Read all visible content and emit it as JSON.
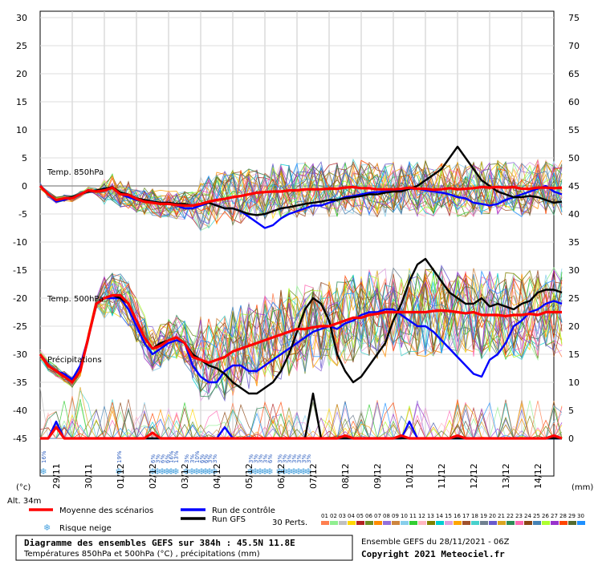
{
  "chart_data": {
    "type": "line",
    "left_axis": {
      "ticks": [
        30,
        25,
        20,
        15,
        10,
        5,
        0,
        -5,
        -10,
        -15,
        -20,
        -25,
        -30,
        -35,
        -40,
        -45
      ],
      "unit": "(°c)",
      "ylim": [
        -45,
        30
      ]
    },
    "right_axis": {
      "ticks": [
        75,
        70,
        65,
        60,
        55,
        50,
        45,
        40,
        35,
        30,
        25,
        20,
        15,
        10,
        5,
        0
      ],
      "unit": "(mm)",
      "ylim": [
        0,
        75
      ]
    },
    "x_labels": [
      "29/11",
      "30/11",
      "01/12",
      "02/12",
      "03/12",
      "04/12",
      "05/12",
      "06/12",
      "07/12",
      "08/12",
      "09/12",
      "10/12",
      "11/12",
      "12/12",
      "13/12",
      "14/12"
    ],
    "panel_labels": {
      "t850": "Temp. 850hPa",
      "t500": "Temp. 500hPa",
      "precip": "Précipitations"
    },
    "altitude": "Alt. 34m",
    "snow_risk": [
      {
        "day": 0.2,
        "pct": "16%"
      },
      {
        "day": 4.9,
        "pct": "19%"
      },
      {
        "day": 7.0,
        "pct": "6%"
      },
      {
        "day": 7.3,
        "pct": "3%"
      },
      {
        "day": 7.6,
        "pct": "6%"
      },
      {
        "day": 7.9,
        "pct": "6%"
      },
      {
        "day": 8.15,
        "pct": "16%"
      },
      {
        "day": 8.45,
        "pct": "13%"
      },
      {
        "day": 9.1,
        "pct": "3%"
      },
      {
        "day": 9.45,
        "pct": "3%"
      },
      {
        "day": 9.75,
        "pct": "10%"
      },
      {
        "day": 10.05,
        "pct": "6%"
      },
      {
        "day": 10.3,
        "pct": "6%"
      },
      {
        "day": 10.55,
        "pct": "3%"
      },
      {
        "day": 10.85,
        "pct": "3%"
      },
      {
        "day": 13.1,
        "pct": "3%"
      },
      {
        "day": 13.4,
        "pct": "3%"
      },
      {
        "day": 13.7,
        "pct": "3%"
      },
      {
        "day": 14.0,
        "pct": "3%"
      },
      {
        "day": 14.3,
        "pct": "6%"
      },
      {
        "day": 14.9,
        "pct": "3%"
      },
      {
        "day": 15.2,
        "pct": "3%"
      },
      {
        "day": 15.5,
        "pct": "3%"
      },
      {
        "day": 15.8,
        "pct": "3%"
      },
      {
        "day": 16.1,
        "pct": "3%"
      },
      {
        "day": 16.4,
        "pct": "3%"
      },
      {
        "day": 16.7,
        "pct": "3%"
      }
    ],
    "series": [
      {
        "name": "Moyenne des scénarios",
        "color": "#ff0000",
        "panel": "t850",
        "values": [
          0,
          -1.5,
          -2.5,
          -2.2,
          -2.2,
          -1.5,
          -0.8,
          -1,
          -0.8,
          -0.3,
          -1.5,
          -1.6,
          -2.3,
          -2.8,
          -3,
          -3.2,
          -3.2,
          -3.4,
          -3.5,
          -3.5,
          -3.2,
          -2.8,
          -2.5,
          -2.3,
          -2,
          -1.8,
          -1.5,
          -1.2,
          -1.1,
          -1,
          -1,
          -0.8,
          -0.8,
          -0.6,
          -0.6,
          -0.6,
          -0.5,
          -0.5,
          -0.3,
          -0.2,
          -0.4,
          -0.4,
          -0.6,
          -0.6,
          -0.6,
          -0.5,
          -0.3,
          -0.5,
          -0.5,
          -0.7,
          -0.6,
          -0.4,
          -0.6,
          -0.5,
          -0.4,
          -0.2,
          -0.3,
          -0.2,
          -0.3,
          -0.2,
          -0.5,
          -0.5,
          -0.3,
          -0.3,
          -0.4,
          -0.3
        ]
      },
      {
        "name": "Moyenne des scénarios",
        "color": "#ff0000",
        "panel": "t500",
        "values": [
          -30,
          -32,
          -33,
          -34,
          -35,
          -33,
          -27,
          -21,
          -20,
          -19.5,
          -19.5,
          -21,
          -24,
          -27,
          -29,
          -28.5,
          -27.5,
          -27,
          -28,
          -30.5,
          -31,
          -31.5,
          -31,
          -30.5,
          -29.5,
          -29,
          -28.5,
          -28,
          -27.5,
          -27,
          -26.5,
          -26,
          -25.5,
          -25.5,
          -25.2,
          -25,
          -25,
          -24.5,
          -24,
          -23.5,
          -23.5,
          -23,
          -22.8,
          -22.5,
          -22.5,
          -22.5,
          -22.5,
          -22.5,
          -22.5,
          -22.3,
          -22.2,
          -22.3,
          -22.5,
          -22.7,
          -22.5,
          -23,
          -23,
          -23,
          -23.2,
          -23,
          -23,
          -22.8,
          -23,
          -22.5,
          -22.5,
          -22.5
        ]
      },
      {
        "name": "Moyenne des scénarios",
        "color": "#ff0000",
        "panel": "precip",
        "values": [
          0,
          0,
          2,
          0,
          0,
          0,
          0,
          0,
          0,
          0,
          0,
          0,
          0,
          0,
          1,
          0,
          0,
          0,
          0,
          0,
          0,
          0,
          0,
          0,
          0,
          0,
          0,
          0,
          0,
          0,
          0,
          0,
          0,
          0,
          0,
          0,
          0,
          0,
          0.5,
          0,
          0,
          0,
          0,
          0,
          0,
          0.5,
          0,
          0,
          0,
          0,
          0,
          0,
          0.5,
          0,
          0,
          0,
          0,
          0,
          0,
          0,
          0,
          0,
          0,
          0,
          0.5,
          0
        ]
      },
      {
        "name": "Run de contrôle",
        "color": "#0000ff",
        "panel": "t850",
        "values": [
          0,
          -1.5,
          -2.8,
          -2.5,
          -2,
          -1.5,
          -1,
          -1,
          -0.5,
          -0.3,
          -1.5,
          -2,
          -2.5,
          -2.5,
          -2.8,
          -3,
          -3,
          -3.5,
          -4,
          -4,
          -3.5,
          -3,
          -3.5,
          -4,
          -4,
          -4.5,
          -5.5,
          -6.5,
          -7.5,
          -7,
          -5.8,
          -5,
          -4.5,
          -4,
          -3.5,
          -3.5,
          -3,
          -2.5,
          -2,
          -1.8,
          -1.5,
          -1.2,
          -1.1,
          -1,
          -0.8,
          -0.7,
          -0.5,
          -0.5,
          -0.8,
          -1,
          -1.2,
          -1.5,
          -2,
          -2.2,
          -3,
          -3.2,
          -3.5,
          -3.2,
          -2.5,
          -2,
          -1.5,
          -1,
          -0.5,
          0,
          -1,
          -1.5
        ]
      },
      {
        "name": "Run de contrôle",
        "color": "#0000ff",
        "panel": "t500",
        "values": [
          -30,
          -32,
          -33,
          -33.5,
          -34.5,
          -32,
          -27,
          -21,
          -20,
          -20,
          -20,
          -22,
          -25,
          -28,
          -30,
          -29,
          -28,
          -27.5,
          -28,
          -32,
          -34,
          -35,
          -35,
          -33,
          -32,
          -32,
          -33,
          -33,
          -32,
          -31,
          -30,
          -29,
          -28,
          -27,
          -26,
          -25.5,
          -25,
          -25.5,
          -24.5,
          -24,
          -23,
          -22.5,
          -22.5,
          -22,
          -22,
          -23,
          -24,
          -25,
          -25,
          -26,
          -27.5,
          -29,
          -30.5,
          -32,
          -33.5,
          -34,
          -31,
          -30,
          -28,
          -25,
          -24,
          -22.5,
          -22,
          -21,
          -20.5,
          -21
        ]
      },
      {
        "name": "Run de contrôle",
        "color": "#0000ff",
        "panel": "precip",
        "values": [
          0,
          0,
          3,
          0,
          0,
          0,
          0,
          0,
          0,
          0,
          0,
          0,
          0,
          0,
          0,
          0,
          0,
          0,
          0,
          0,
          0,
          0,
          0,
          2,
          0,
          0,
          0,
          0,
          0,
          0,
          0,
          0,
          0,
          0,
          0,
          0,
          0,
          0,
          0,
          0,
          0,
          0,
          0,
          0,
          0,
          0,
          3,
          0,
          0,
          0,
          0,
          0,
          0,
          0,
          0,
          0,
          0,
          0,
          0,
          0,
          0,
          0,
          0,
          0,
          0,
          0
        ]
      },
      {
        "name": "Run GFS",
        "color": "#000000",
        "panel": "t850",
        "values": [
          0,
          -1.5,
          -2.5,
          -2.2,
          -2,
          -1.5,
          -1,
          -0.8,
          -0.5,
          -0.2,
          -1.2,
          -1.5,
          -2.2,
          -2.5,
          -2.8,
          -3,
          -3,
          -3.2,
          -3.2,
          -3.5,
          -3.2,
          -3,
          -3.5,
          -4,
          -4,
          -4.5,
          -5,
          -5.2,
          -5,
          -4.5,
          -4,
          -3.8,
          -3.5,
          -3.2,
          -3,
          -2.8,
          -2.5,
          -2.5,
          -2.2,
          -2,
          -1.8,
          -1.5,
          -1.5,
          -1.2,
          -1,
          -1,
          -0.5,
          0,
          1,
          2,
          3,
          5,
          7,
          5,
          3,
          1,
          0,
          -1,
          -1.5,
          -2,
          -2,
          -1.8,
          -2,
          -2.5,
          -3,
          -2.8
        ]
      },
      {
        "name": "Run GFS",
        "color": "#000000",
        "panel": "t500",
        "values": [
          -30,
          -32,
          -33,
          -34,
          -35,
          -33,
          -27,
          -21,
          -20,
          -19.5,
          -20,
          -21,
          -24,
          -27,
          -29,
          -28,
          -27.5,
          -27,
          -28,
          -30,
          -31,
          -32,
          -32.5,
          -33.5,
          -35,
          -36,
          -37,
          -37,
          -36,
          -35,
          -33,
          -30,
          -26,
          -22,
          -20,
          -21,
          -24,
          -30,
          -33,
          -35,
          -34,
          -32,
          -30,
          -28,
          -24,
          -21,
          -17,
          -14,
          -13,
          -15,
          -17,
          -19,
          -20,
          -21,
          -21,
          -20,
          -21.5,
          -21,
          -21.5,
          -22,
          -21,
          -20.5,
          -19,
          -18.5,
          -18.5,
          -19
        ]
      },
      {
        "name": "Run GFS",
        "color": "#000000",
        "panel": "precip",
        "values": [
          0,
          0,
          2,
          0,
          0,
          0,
          0,
          0,
          0,
          0,
          0,
          0,
          0,
          0,
          0,
          0,
          0,
          0,
          0,
          0,
          0,
          0,
          0,
          0,
          0,
          0,
          0,
          0,
          0,
          0,
          0,
          0,
          0,
          0,
          8,
          0,
          0,
          0,
          0,
          0,
          0,
          0,
          0,
          0,
          0,
          0,
          0,
          0,
          0,
          0,
          0,
          0,
          0,
          0,
          0,
          0,
          0,
          0,
          0,
          0,
          0,
          0,
          0,
          0,
          0,
          0
        ]
      }
    ]
  },
  "legend": {
    "mean": "Moyenne des scénarios",
    "control": "Run de contrôle",
    "gfs": "Run GFS",
    "snow": "Risque neige",
    "perts": "30 Perts.",
    "pert_numbers": [
      "01",
      "02",
      "03",
      "04",
      "05",
      "06",
      "07",
      "08",
      "09",
      "10",
      "11",
      "12",
      "13",
      "14",
      "15",
      "16",
      "17",
      "18",
      "19",
      "20",
      "21",
      "22",
      "23",
      "24",
      "25",
      "26",
      "27",
      "28",
      "29",
      "30"
    ],
    "pert_colors": [
      "#ff7f50",
      "#90ee90",
      "#c0c0c0",
      "#ffd700",
      "#b22222",
      "#6b8e23",
      "#ff8c00",
      "#9370db",
      "#cd853f",
      "#87ceeb",
      "#32cd32",
      "#ffb6c1",
      "#808000",
      "#00ced1",
      "#dda0dd",
      "#ffa500",
      "#a0522d",
      "#48d1cc",
      "#708090",
      "#6a5acd",
      "#daa520",
      "#2e8b57",
      "#ff69b4",
      "#8b4513",
      "#4682b4",
      "#adff2f",
      "#9932cc",
      "#ff4500",
      "#556b2f",
      "#1e90ff"
    ],
    "mean_color": "#ff0000",
    "control_color": "#0000ff",
    "gfs_color": "#000000"
  },
  "footer": {
    "title": "Diagramme des ensembles GEFS sur 384h : 45.5N 11.8E",
    "subtitle": "Températures 850hPa et 500hPa (°C) , précipitations (mm)",
    "run": "Ensemble GEFS du 28/11/2021 - 06Z",
    "copyright": "Copyright 2021 Meteociel.fr"
  }
}
